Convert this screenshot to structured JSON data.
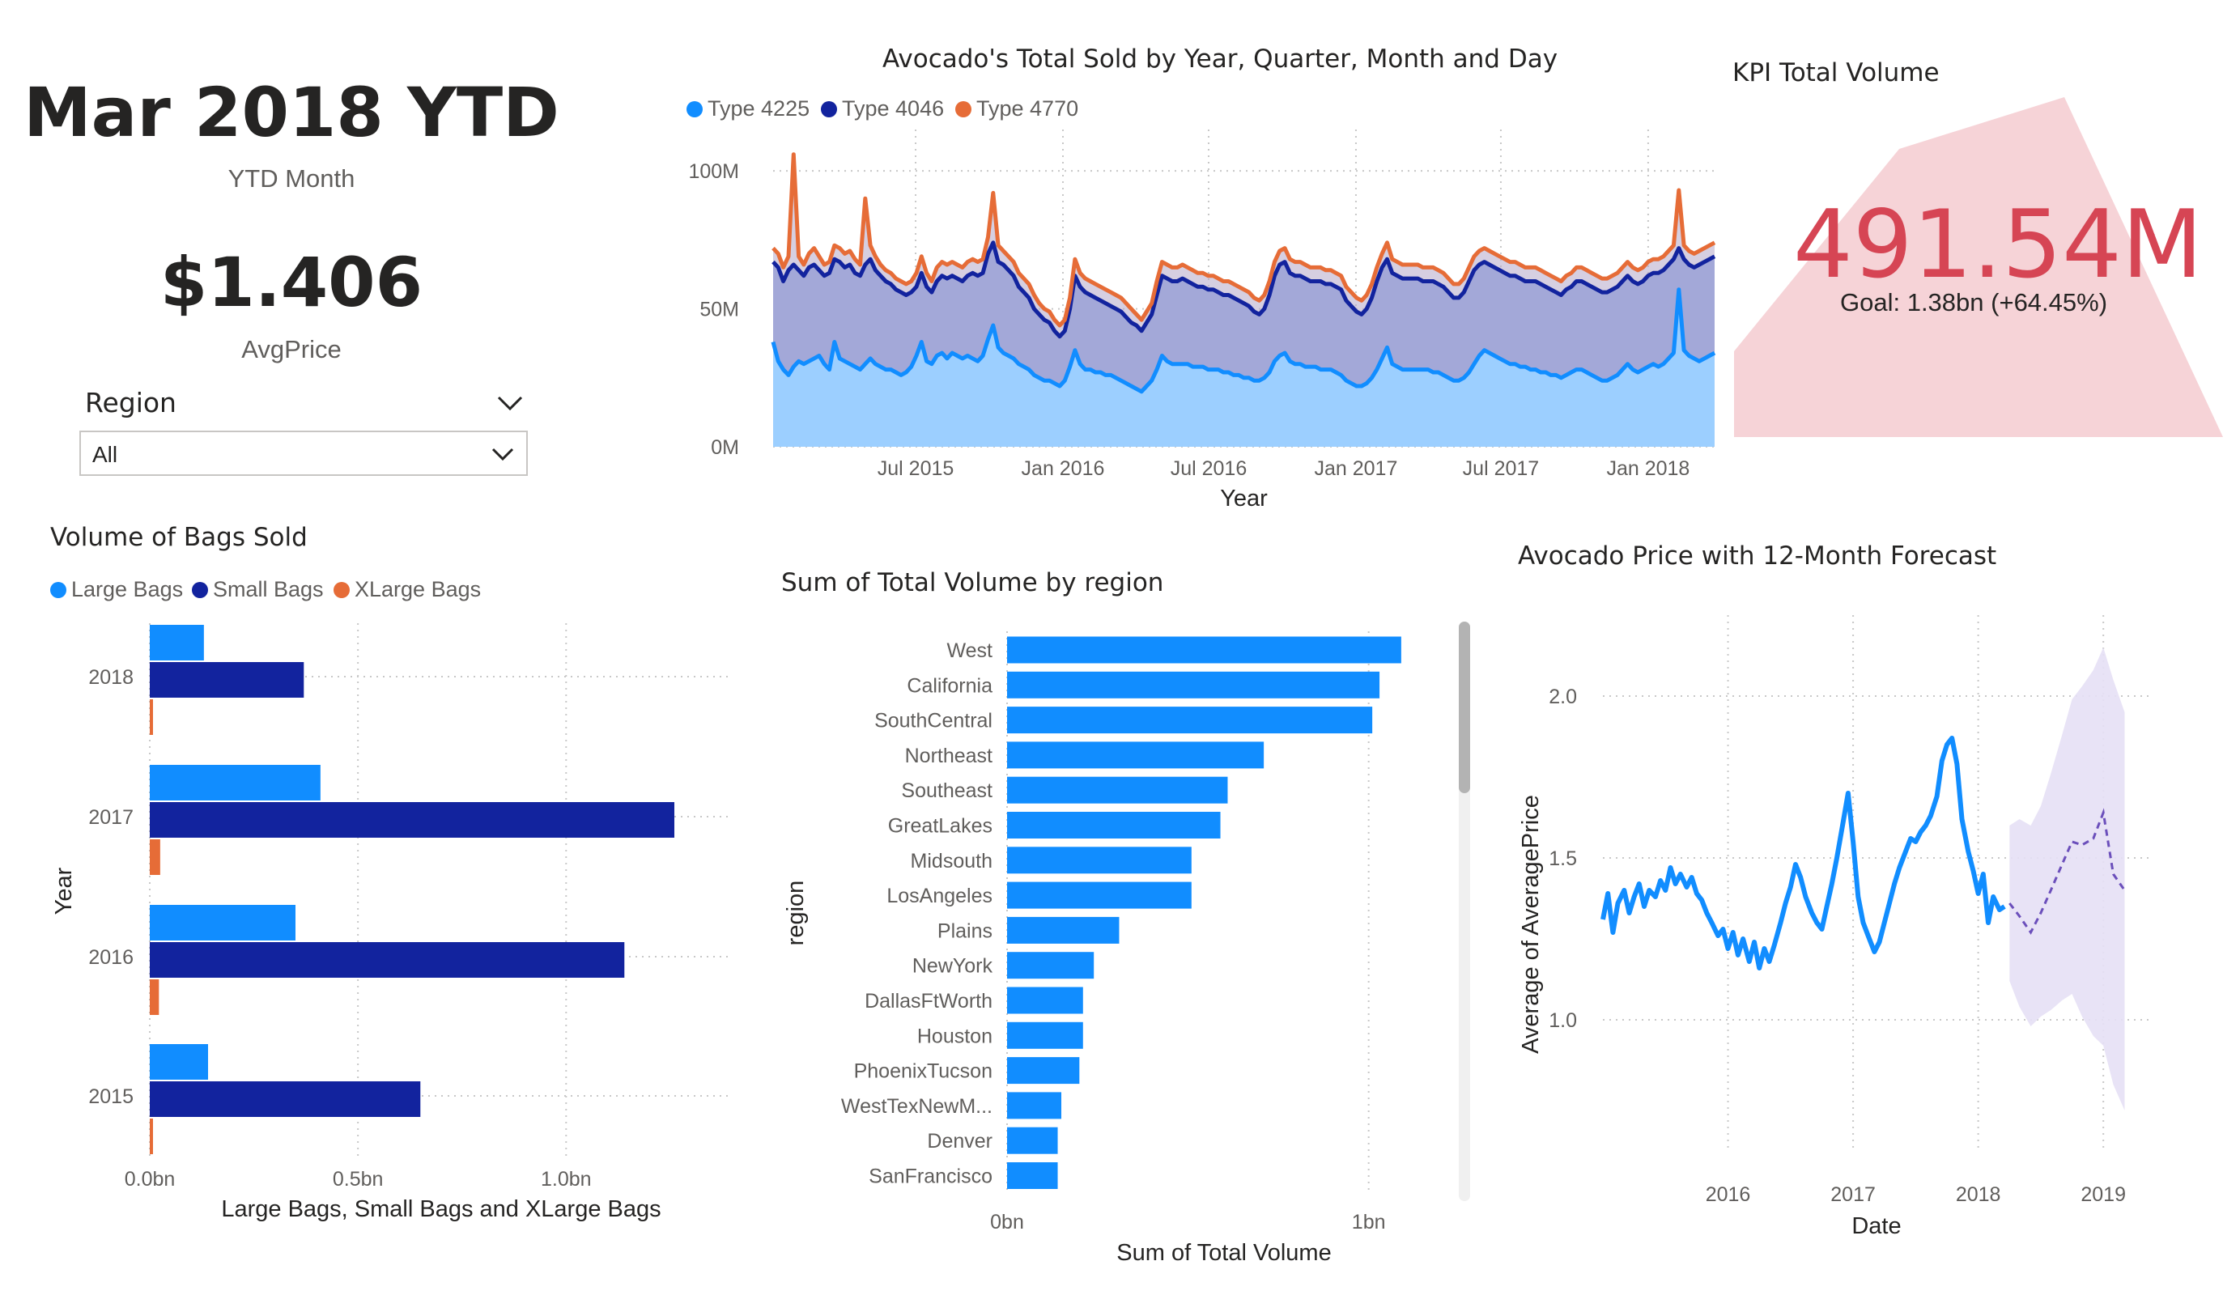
{
  "header_card": {
    "title": "Mar 2018 YTD",
    "subtitle": "YTD Month"
  },
  "price_card": {
    "value": "$1.406",
    "label": "AvgPrice"
  },
  "region_slicer": {
    "title": "Region",
    "selected": "All"
  },
  "kpi": {
    "title": "KPI Total Volume",
    "value": "491.54M",
    "alert": "!",
    "goal_text": "Goal: 1.38bn (+64.45%)",
    "color": "#d64554",
    "bg_color": "#f6d3d7"
  },
  "colors": {
    "light_blue": "#118dff",
    "dark_blue": "#12239e",
    "orange": "#e66c37",
    "area_light": "#9ccfff",
    "area_mid": "#a3a8d8",
    "forecast_band": "#e6e0f5",
    "forecast_line": "#6b4fbb"
  },
  "charts": [
    {
      "id": "total-sold",
      "chart_data": {
        "type": "area",
        "title": "Avocado's Total Sold by Year, Quarter, Month and Day",
        "xlabel": "Year",
        "ylabel": "",
        "x_ticks": [
          "Jul 2015",
          "Jan 2016",
          "Jul 2016",
          "Jan 2017",
          "Jul 2017",
          "Jan 2018"
        ],
        "y_ticks": [
          "0M",
          "50M",
          "100M"
        ],
        "ylim": [
          0,
          115
        ],
        "x_range": [
          "2015-01-04",
          "2018-03-25"
        ],
        "legend": [
          "Type 4225",
          "Type 4046",
          "Type 4770"
        ],
        "legend_position": "top-left",
        "series": [
          {
            "name": "Type 4225",
            "values": [
              38,
              31,
              28,
              26,
              29,
              31,
              30,
              31,
              32,
              33,
              30,
              28,
              38,
              32,
              31,
              30,
              29,
              28,
              30,
              32,
              30,
              29,
              28,
              28,
              27,
              26,
              27,
              29,
              33,
              38,
              31,
              30,
              33,
              34,
              32,
              34,
              33,
              32,
              33,
              32,
              31,
              33,
              39,
              44,
              36,
              34,
              33,
              32,
              30,
              29,
              28,
              26,
              25,
              24,
              24,
              23,
              22,
              24,
              29,
              35,
              30,
              28,
              28,
              27,
              27,
              26,
              26,
              25,
              24,
              23,
              22,
              21,
              20,
              22,
              24,
              28,
              33,
              31,
              30,
              30,
              30,
              30,
              29,
              29,
              29,
              28,
              28,
              28,
              27,
              27,
              26,
              26,
              25,
              25,
              24,
              24,
              25,
              27,
              31,
              33,
              34,
              31,
              30,
              30,
              29,
              29,
              29,
              28,
              28,
              28,
              27,
              26,
              24,
              23,
              22,
              22,
              23,
              25,
              28,
              32,
              36,
              30,
              29,
              28,
              28,
              28,
              28,
              28,
              28,
              27,
              27,
              26,
              25,
              24,
              24,
              25,
              27,
              30,
              33,
              35,
              34,
              33,
              32,
              31,
              30,
              30,
              29,
              29,
              28,
              28,
              27,
              27,
              26,
              26,
              25,
              26,
              27,
              28,
              28,
              27,
              26,
              25,
              24,
              24,
              25,
              26,
              28,
              30,
              28,
              27,
              28,
              29,
              30,
              29,
              30,
              32,
              34,
              57,
              35,
              33,
              32,
              31,
              32,
              33,
              34
            ]
          },
          {
            "name": "Type 4046",
            "values": [
              67,
              65,
              60,
              64,
              66,
              64,
              62,
              65,
              66,
              64,
              62,
              63,
              68,
              67,
              65,
              66,
              63,
              62,
              66,
              68,
              64,
              62,
              60,
              59,
              57,
              56,
              55,
              56,
              58,
              63,
              58,
              56,
              60,
              62,
              61,
              62,
              61,
              60,
              62,
              63,
              62,
              63,
              70,
              74,
              67,
              66,
              64,
              62,
              58,
              56,
              54,
              50,
              48,
              46,
              45,
              42,
              40,
              42,
              50,
              62,
              58,
              56,
              55,
              54,
              53,
              52,
              51,
              50,
              49,
              47,
              45,
              44,
              42,
              45,
              48,
              55,
              62,
              61,
              60,
              60,
              61,
              60,
              59,
              58,
              58,
              57,
              57,
              56,
              55,
              55,
              54,
              53,
              52,
              51,
              49,
              48,
              50,
              55,
              62,
              66,
              67,
              63,
              62,
              62,
              61,
              60,
              60,
              60,
              59,
              59,
              58,
              57,
              53,
              51,
              49,
              48,
              50,
              54,
              60,
              65,
              68,
              63,
              62,
              61,
              61,
              61,
              61,
              60,
              60,
              60,
              59,
              58,
              56,
              54,
              54,
              56,
              60,
              64,
              66,
              67,
              66,
              65,
              64,
              63,
              62,
              62,
              61,
              60,
              60,
              60,
              59,
              58,
              57,
              56,
              55,
              57,
              58,
              60,
              60,
              59,
              58,
              57,
              56,
              56,
              57,
              58,
              60,
              62,
              60,
              59,
              60,
              62,
              63,
              63,
              64,
              66,
              68,
              72,
              68,
              66,
              65,
              66,
              67,
              68,
              69
            ]
          },
          {
            "name": "Type 4770",
            "values": [
              72,
              70,
              65,
              69,
              106,
              69,
              66,
              70,
              72,
              69,
              66,
              67,
              73,
              72,
              70,
              71,
              68,
              66,
              90,
              73,
              69,
              66,
              64,
              63,
              61,
              60,
              59,
              60,
              63,
              69,
              63,
              60,
              65,
              67,
              66,
              67,
              66,
              65,
              67,
              68,
              67,
              68,
              76,
              92,
              73,
              71,
              69,
              67,
              63,
              61,
              59,
              55,
              52,
              50,
              49,
              46,
              44,
              46,
              54,
              68,
              63,
              61,
              60,
              59,
              58,
              57,
              56,
              55,
              54,
              52,
              50,
              48,
              46,
              49,
              52,
              60,
              67,
              66,
              65,
              65,
              66,
              65,
              64,
              63,
              63,
              62,
              62,
              61,
              60,
              60,
              59,
              58,
              57,
              56,
              54,
              53,
              55,
              60,
              67,
              71,
              72,
              68,
              67,
              67,
              66,
              65,
              65,
              65,
              64,
              64,
              63,
              62,
              58,
              56,
              54,
              53,
              55,
              59,
              65,
              70,
              74,
              68,
              67,
              66,
              66,
              66,
              66,
              65,
              65,
              65,
              64,
              63,
              61,
              59,
              59,
              61,
              65,
              69,
              71,
              72,
              71,
              70,
              69,
              68,
              67,
              67,
              66,
              65,
              65,
              65,
              64,
              63,
              62,
              61,
              60,
              62,
              63,
              65,
              65,
              64,
              63,
              62,
              61,
              61,
              62,
              63,
              65,
              67,
              65,
              64,
              65,
              67,
              68,
              68,
              69,
              71,
              73,
              93,
              73,
              71,
              70,
              71,
              72,
              73,
              74
            ]
          }
        ]
      }
    },
    {
      "id": "bags",
      "chart_data": {
        "type": "bar",
        "orientation": "horizontal",
        "title": "Volume of Bags Sold",
        "xlabel": "Large Bags, Small Bags and XLarge Bags",
        "ylabel": "Year",
        "categories": [
          "2018",
          "2017",
          "2016",
          "2015"
        ],
        "x_ticks": [
          "0.0bn",
          "0.5bn",
          "1.0bn"
        ],
        "xlim": [
          0,
          1.4
        ],
        "legend": [
          "Large Bags",
          "Small Bags",
          "XLarge Bags"
        ],
        "legend_position": "top-left",
        "series": [
          {
            "name": "Large Bags",
            "values": [
              0.13,
              0.41,
              0.35,
              0.14
            ]
          },
          {
            "name": "Small Bags",
            "values": [
              0.37,
              1.26,
              1.14,
              0.65
            ]
          },
          {
            "name": "XLarge Bags",
            "values": [
              0.006,
              0.025,
              0.022,
              0.005
            ]
          }
        ]
      }
    },
    {
      "id": "region-volume",
      "chart_data": {
        "type": "bar",
        "orientation": "horizontal",
        "title": "Sum of Total Volume by region",
        "xlabel": "Sum of Total Volume",
        "ylabel": "region",
        "x_ticks": [
          "0bn",
          "1bn"
        ],
        "xlim": [
          0,
          1.2
        ],
        "categories": [
          "West",
          "California",
          "SouthCentral",
          "Northeast",
          "Southeast",
          "GreatLakes",
          "Midsouth",
          "LosAngeles",
          "Plains",
          "NewYork",
          "DallasFtWorth",
          "Houston",
          "PhoenixTucson",
          "WestTexNewM...",
          "Denver",
          "SanFrancisco"
        ],
        "values": [
          1.09,
          1.03,
          1.01,
          0.71,
          0.61,
          0.59,
          0.51,
          0.51,
          0.31,
          0.24,
          0.21,
          0.21,
          0.2,
          0.15,
          0.14,
          0.14
        ]
      }
    },
    {
      "id": "forecast",
      "chart_data": {
        "type": "line",
        "title": "Avocado Price with 12-Month Forecast",
        "xlabel": "Date",
        "ylabel": "Average of AveragePrice",
        "x_ticks": [
          "2016",
          "2017",
          "2018",
          "2019"
        ],
        "y_ticks": [
          "1.0",
          "1.5",
          "2.0"
        ],
        "ylim": [
          0.6,
          2.25
        ],
        "x_range": [
          2015.0,
          2019.4
        ],
        "history": {
          "x": [
            2015.0,
            2015.04,
            2015.08,
            2015.12,
            2015.17,
            2015.21,
            2015.25,
            2015.29,
            2015.33,
            2015.37,
            2015.42,
            2015.46,
            2015.5,
            2015.54,
            2015.58,
            2015.62,
            2015.67,
            2015.71,
            2015.75,
            2015.79,
            2015.83,
            2015.87,
            2015.92,
            2015.96,
            2016.0,
            2016.04,
            2016.08,
            2016.12,
            2016.17,
            2016.21,
            2016.25,
            2016.29,
            2016.33,
            2016.37,
            2016.42,
            2016.46,
            2016.5,
            2016.54,
            2016.58,
            2016.62,
            2016.67,
            2016.71,
            2016.75,
            2016.79,
            2016.83,
            2016.87,
            2016.92,
            2016.96,
            2017.0,
            2017.04,
            2017.08,
            2017.12,
            2017.17,
            2017.21,
            2017.25,
            2017.29,
            2017.33,
            2017.37,
            2017.42,
            2017.46,
            2017.5,
            2017.54,
            2017.58,
            2017.62,
            2017.67,
            2017.71,
            2017.75,
            2017.79,
            2017.83,
            2017.87,
            2017.92,
            2017.96,
            2018.0,
            2018.04,
            2018.08,
            2018.12,
            2018.17,
            2018.21
          ],
          "y": [
            1.31,
            1.39,
            1.27,
            1.36,
            1.4,
            1.33,
            1.38,
            1.42,
            1.35,
            1.4,
            1.38,
            1.43,
            1.4,
            1.47,
            1.42,
            1.45,
            1.41,
            1.44,
            1.39,
            1.37,
            1.33,
            1.3,
            1.26,
            1.28,
            1.22,
            1.27,
            1.2,
            1.25,
            1.18,
            1.24,
            1.16,
            1.22,
            1.18,
            1.23,
            1.3,
            1.36,
            1.41,
            1.48,
            1.44,
            1.38,
            1.33,
            1.3,
            1.28,
            1.35,
            1.42,
            1.5,
            1.61,
            1.7,
            1.55,
            1.38,
            1.3,
            1.26,
            1.21,
            1.24,
            1.3,
            1.36,
            1.42,
            1.47,
            1.52,
            1.56,
            1.55,
            1.58,
            1.6,
            1.63,
            1.69,
            1.8,
            1.85,
            1.87,
            1.79,
            1.62,
            1.52,
            1.46,
            1.39,
            1.45,
            1.3,
            1.38,
            1.34,
            1.35
          ]
        },
        "forecast": {
          "x": [
            2018.25,
            2018.33,
            2018.42,
            2018.5,
            2018.58,
            2018.67,
            2018.75,
            2018.83,
            2018.92,
            2019.0,
            2019.08,
            2019.17
          ],
          "y": [
            1.36,
            1.32,
            1.27,
            1.33,
            1.4,
            1.48,
            1.55,
            1.54,
            1.56,
            1.64,
            1.45,
            1.4
          ],
          "lower": [
            1.12,
            1.04,
            0.98,
            1.01,
            1.03,
            1.06,
            1.08,
            1.01,
            0.95,
            0.92,
            0.8,
            0.72
          ],
          "upper": [
            1.6,
            1.62,
            1.6,
            1.66,
            1.76,
            1.88,
            1.99,
            2.03,
            2.08,
            2.15,
            2.05,
            1.95
          ]
        }
      }
    }
  ]
}
